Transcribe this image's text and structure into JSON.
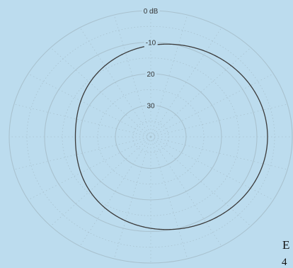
{
  "chart_data": {
    "type": "polar",
    "title": "",
    "radial_unit": "dB",
    "radial_ticks": [
      {
        "db": 0,
        "label": "0 dB"
      },
      {
        "db": -10,
        "label": "-10"
      },
      {
        "db": -20,
        "label": "20"
      },
      {
        "db": -30,
        "label": "30"
      }
    ],
    "radial_range_db": [
      -40,
      0
    ],
    "angular_grid_step_deg": 15,
    "grid": true,
    "series": [
      {
        "pattern": "supercardioid",
        "front_direction": "right",
        "max_db": -7,
        "front_weight": 0.63,
        "floor_db": -40
      }
    ],
    "colors": {
      "background": "#bcdcee",
      "grid": "#a9c2cf",
      "grid_text": "#333333",
      "curve": "#3a3a3a"
    }
  },
  "corner_text": {
    "letter": "E",
    "digit": "4"
  }
}
